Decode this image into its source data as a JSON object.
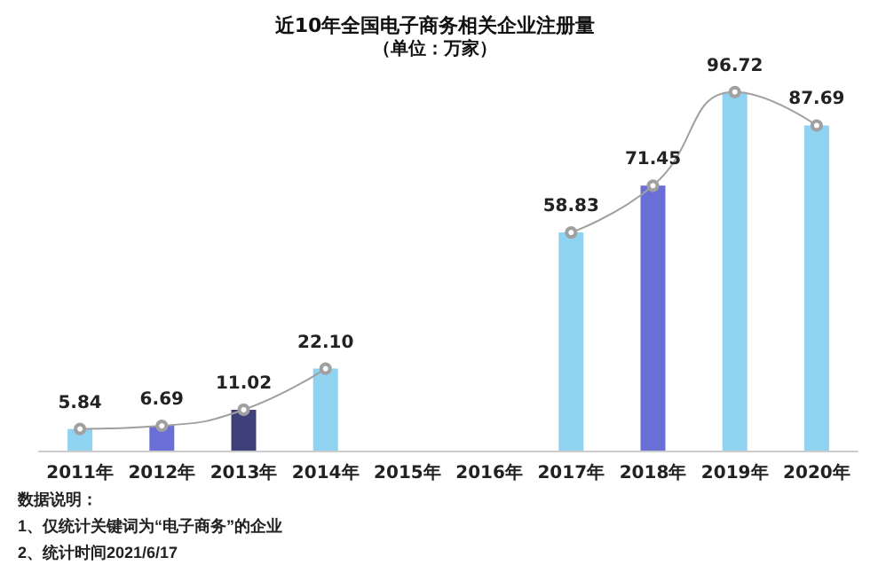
{
  "chart_data": {
    "type": "bar",
    "title": "近10年全国电子商务相关企业注册量",
    "subtitle": "（单位：万家）",
    "categories": [
      "2011年",
      "2012年",
      "2013年",
      "2014年",
      "2015年",
      "2016年",
      "2017年",
      "2018年",
      "2019年",
      "2020年"
    ],
    "series": [
      {
        "colors": [
          "#8fd3f0",
          "#6a6fd6",
          "#3d4079",
          "#8fd3f0",
          "#6a6fd6",
          "#3d4079",
          "#8fd3f0",
          "#6a6fd6",
          "#8fd3f0",
          "#8fd3f0"
        ],
        "values": [
          5.84,
          6.69,
          11.02,
          22.1,
          null,
          null,
          58.83,
          71.45,
          96.72,
          87.69
        ]
      },
      {
        "type": "line",
        "color": "#a0a0a0",
        "values": [
          5.84,
          6.69,
          11.02,
          22.1,
          null,
          null,
          58.83,
          71.45,
          96.72,
          87.69
        ],
        "value_labels": [
          "5.84",
          "6.69",
          "11.02",
          "22.10",
          null,
          null,
          "58.83",
          "71.45",
          "96.72",
          "87.69"
        ],
        "marker": "circle"
      }
    ],
    "annotations": [
      "数据说明：",
      "1、仅统计关键词为“电子商务”的企业",
      "2、统计时间2021/6/17"
    ]
  }
}
